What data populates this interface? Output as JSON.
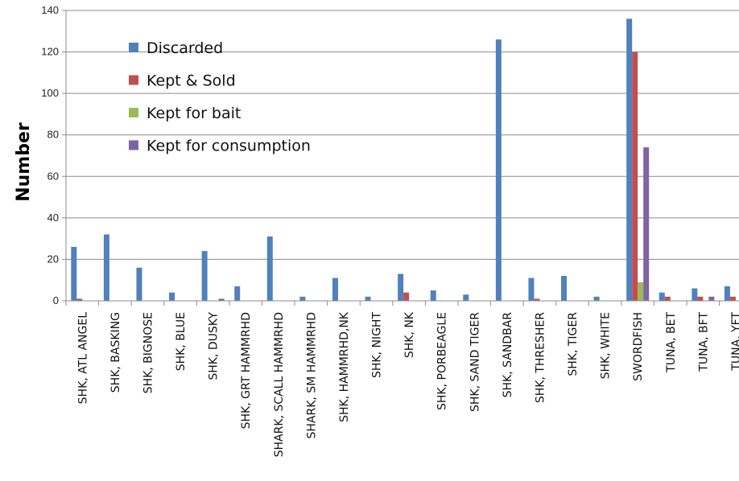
{
  "chart_data": {
    "type": "bar",
    "title": "",
    "xlabel": "",
    "ylabel": "Number",
    "ylim": [
      0,
      140
    ],
    "yticks": [
      0,
      20,
      40,
      60,
      80,
      100,
      120,
      140
    ],
    "grid": "horizontal",
    "legend_position": "top-left",
    "categories": [
      "SHK, ATL ANGEL",
      "SHK, BASKING",
      "SHK, BIGNOSE",
      "SHK, BLUE",
      "SHK, DUSKY",
      "SHK, GRT HAMMRHD",
      "SHARK, SCALL HAMMRHD",
      "SHARK, SM HAMMRHD",
      "SHK, HAMMRHD,NK",
      "SHK, NIGHT",
      "SHK, NK",
      "SHK, PORBEAGLE",
      "SHK, SAND TIGER",
      "SHK, SANDBAR",
      "SHK, THRESHER",
      "SHK, TIGER",
      "SHK, WHITE",
      "SWORDFISH",
      "TUNA, BET",
      "TUNA, BFT",
      "TUNA, YFT"
    ],
    "series": [
      {
        "name": "Discarded",
        "color": "#4f81bd",
        "values": [
          26,
          32,
          16,
          4,
          24,
          7,
          31,
          2,
          11,
          2,
          13,
          5,
          3,
          126,
          11,
          12,
          2,
          136,
          4,
          6,
          7
        ]
      },
      {
        "name": "Kept & Sold",
        "color": "#c0504d",
        "values": [
          1,
          0,
          0,
          0,
          0,
          0,
          0,
          0,
          0,
          0,
          4,
          0,
          0,
          0,
          1,
          0,
          0,
          120,
          2,
          2,
          2
        ]
      },
      {
        "name": "Kept for bait",
        "color": "#9bbb59",
        "values": [
          0,
          0,
          0,
          0,
          0,
          0,
          0,
          0,
          0,
          0,
          0,
          0,
          0,
          0,
          0,
          0,
          0,
          9,
          0,
          0,
          0
        ]
      },
      {
        "name": "Kept for consumption",
        "color": "#8064a2",
        "values": [
          0,
          0,
          0,
          0,
          1,
          0,
          0,
          0,
          0,
          0,
          0,
          0,
          0,
          0,
          0,
          0,
          0,
          74,
          0,
          2,
          4
        ]
      }
    ]
  }
}
